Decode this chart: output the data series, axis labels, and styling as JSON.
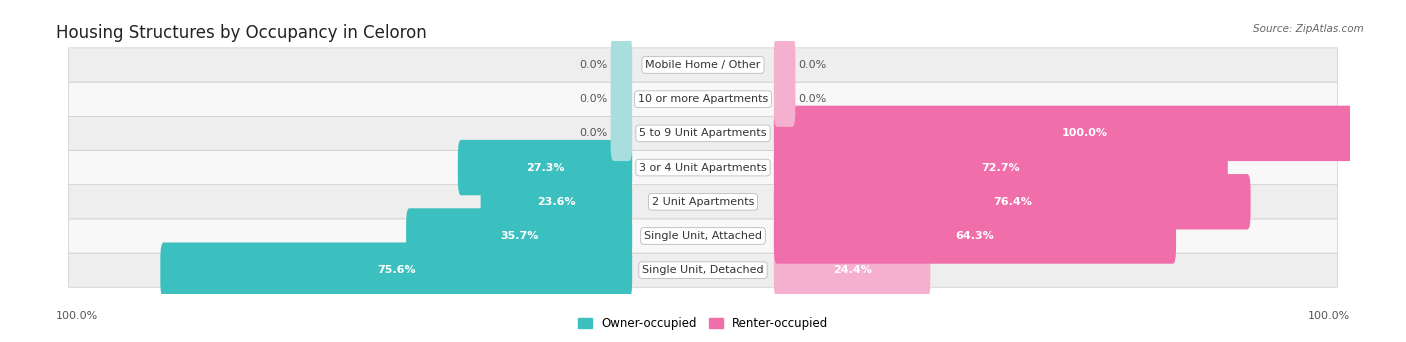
{
  "title": "Housing Structures by Occupancy in Celoron",
  "source": "Source: ZipAtlas.com",
  "categories": [
    "Single Unit, Detached",
    "Single Unit, Attached",
    "2 Unit Apartments",
    "3 or 4 Unit Apartments",
    "5 to 9 Unit Apartments",
    "10 or more Apartments",
    "Mobile Home / Other"
  ],
  "owner_pct": [
    75.6,
    35.7,
    23.6,
    27.3,
    0.0,
    0.0,
    0.0
  ],
  "renter_pct": [
    24.4,
    64.3,
    76.4,
    72.7,
    100.0,
    0.0,
    0.0
  ],
  "owner_color": "#3bbfbf",
  "owner_color_light": "#a8dede",
  "renter_color": "#f06eaa",
  "renter_color_light": "#f5b0cf",
  "owner_label": "Owner-occupied",
  "renter_label": "Renter-occupied",
  "row_bg_even": "#eeeeee",
  "row_bg_odd": "#f8f8f8",
  "title_fontsize": 12,
  "label_fontsize": 8,
  "value_fontsize": 8,
  "axis_label_left": "100.0%",
  "axis_label_right": "100.0%"
}
